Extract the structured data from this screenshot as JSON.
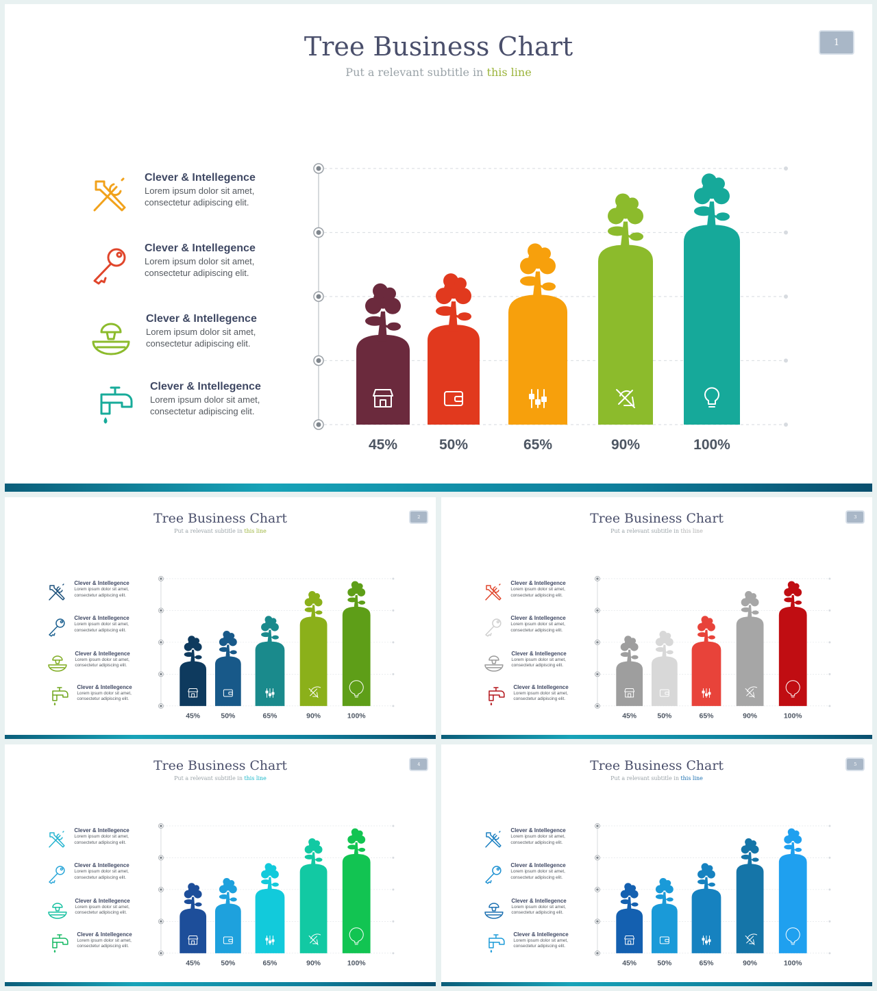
{
  "slides": [
    {
      "title": "Tree Business Chart",
      "subtitle_prefix": "Put a relevant subtitle in ",
      "subtitle_highlight": "this line",
      "highlight_color": "#9bb43b",
      "page": "1",
      "features": [
        {
          "heading": "Clever & Intellegence",
          "line1": "Lorem ipsum dolor sit amet,",
          "line2": "consectetur adipiscing elit.",
          "icon": "tools-icon",
          "color": "#f1a21c"
        },
        {
          "heading": "Clever & Intellegence",
          "line1": "Lorem ipsum dolor sit amet,",
          "line2": "consectetur adipiscing elit.",
          "icon": "key-icon",
          "color": "#e0452b"
        },
        {
          "heading": "Clever & Intellegence",
          "line1": "Lorem ipsum dolor sit amet,",
          "line2": "consectetur adipiscing elit.",
          "icon": "juicer-icon",
          "color": "#8cbb2c"
        },
        {
          "heading": "Clever & Intellegence",
          "line1": "Lorem ipsum dolor sit amet,",
          "line2": "consectetur adipiscing elit.",
          "icon": "faucet-icon",
          "color": "#17ab9a"
        }
      ],
      "chart_data": {
        "type": "bar",
        "categories": [
          "45%",
          "50%",
          "65%",
          "90%",
          "100%"
        ],
        "values": [
          45,
          50,
          65,
          90,
          100
        ],
        "bar_icons": [
          "shop-icon",
          "wallet-icon",
          "equalizer-icon",
          "bell-off-icon",
          "bulb-icon"
        ],
        "colors": [
          "#6b2a3d",
          "#e1391e",
          "#f7a00c",
          "#8cbb2c",
          "#16a99a"
        ]
      }
    },
    {
      "title": "Tree Business Chart",
      "subtitle_prefix": "Put a relevant subtitle in ",
      "subtitle_highlight": "this line",
      "highlight_color": "#9bb43b",
      "page": "2",
      "features": [
        {
          "heading": "Clever & Intellegence",
          "line1": "Lorem ipsum dolor sit amet,",
          "line2": "consectetur adipiscing elit.",
          "icon": "tools-icon",
          "color": "#1a4f7a"
        },
        {
          "heading": "Clever & Intellegence",
          "line1": "Lorem ipsum dolor sit amet,",
          "line2": "consectetur adipiscing elit.",
          "icon": "key-icon",
          "color": "#1a5f8f"
        },
        {
          "heading": "Clever & Intellegence",
          "line1": "Lorem ipsum dolor sit amet,",
          "line2": "consectetur adipiscing elit.",
          "icon": "juicer-icon",
          "color": "#7eab1f"
        },
        {
          "heading": "Clever & Intellegence",
          "line1": "Lorem ipsum dolor sit amet,",
          "line2": "consectetur adipiscing elit.",
          "icon": "faucet-icon",
          "color": "#6ea51a"
        }
      ],
      "chart_data": {
        "type": "bar",
        "categories": [
          "45%",
          "50%",
          "65%",
          "90%",
          "100%"
        ],
        "values": [
          45,
          50,
          65,
          90,
          100
        ],
        "bar_icons": [
          "shop-icon",
          "wallet-icon",
          "equalizer-icon",
          "bell-off-icon",
          "bulb-icon"
        ],
        "colors": [
          "#0e3a5e",
          "#185989",
          "#1a8a8c",
          "#8bb01a",
          "#5e9e18"
        ]
      }
    },
    {
      "title": "Tree Business Chart",
      "subtitle_prefix": "Put a relevant subtitle in ",
      "subtitle_highlight": "this line",
      "highlight_color": "#b0b0b0",
      "page": "3",
      "features": [
        {
          "heading": "Clever & Intellegence",
          "line1": "Lorem ipsum dolor sit amet,",
          "line2": "consectetur adipiscing elit.",
          "icon": "tools-icon",
          "color": "#e0452b"
        },
        {
          "heading": "Clever & Intellegence",
          "line1": "Lorem ipsum dolor sit amet,",
          "line2": "consectetur adipiscing elit.",
          "icon": "key-icon",
          "color": "#cfcfcf"
        },
        {
          "heading": "Clever & Intellegence",
          "line1": "Lorem ipsum dolor sit amet,",
          "line2": "consectetur adipiscing elit.",
          "icon": "juicer-icon",
          "color": "#9a9a9a"
        },
        {
          "heading": "Clever & Intellegence",
          "line1": "Lorem ipsum dolor sit amet,",
          "line2": "consectetur adipiscing elit.",
          "icon": "faucet-icon",
          "color": "#b3141a"
        }
      ],
      "chart_data": {
        "type": "bar",
        "categories": [
          "45%",
          "50%",
          "65%",
          "90%",
          "100%"
        ],
        "values": [
          45,
          50,
          65,
          90,
          100
        ],
        "bar_icons": [
          "shop-icon",
          "wallet-icon",
          "equalizer-icon",
          "bell-off-icon",
          "bulb-icon"
        ],
        "colors": [
          "#9e9e9e",
          "#d8d8d8",
          "#e8433a",
          "#a6a6a6",
          "#c00d12"
        ]
      }
    },
    {
      "title": "Tree Business Chart",
      "subtitle_prefix": "Put a relevant subtitle in ",
      "subtitle_highlight": "this line",
      "highlight_color": "#18b7c9",
      "page": "4",
      "features": [
        {
          "heading": "Clever & Intellegence",
          "line1": "Lorem ipsum dolor sit amet,",
          "line2": "consectetur adipiscing elit.",
          "icon": "tools-icon",
          "color": "#25b4d0"
        },
        {
          "heading": "Clever & Intellegence",
          "line1": "Lorem ipsum dolor sit amet,",
          "line2": "consectetur adipiscing elit.",
          "icon": "key-icon",
          "color": "#2aa6d8"
        },
        {
          "heading": "Clever & Intellegence",
          "line1": "Lorem ipsum dolor sit amet,",
          "line2": "consectetur adipiscing elit.",
          "icon": "juicer-icon",
          "color": "#14c0a0"
        },
        {
          "heading": "Clever & Intellegence",
          "line1": "Lorem ipsum dolor sit amet,",
          "line2": "consectetur adipiscing elit.",
          "icon": "faucet-icon",
          "color": "#12b862"
        }
      ],
      "chart_data": {
        "type": "bar",
        "categories": [
          "45%",
          "50%",
          "65%",
          "90%",
          "100%"
        ],
        "values": [
          45,
          50,
          65,
          90,
          100
        ],
        "bar_icons": [
          "shop-icon",
          "wallet-icon",
          "equalizer-icon",
          "bell-off-icon",
          "bulb-icon"
        ],
        "colors": [
          "#1d4e9a",
          "#1ea1dd",
          "#12cadb",
          "#12c9a3",
          "#12c452"
        ]
      }
    },
    {
      "title": "Tree Business Chart",
      "subtitle_prefix": "Put a relevant subtitle in ",
      "subtitle_highlight": "this line",
      "highlight_color": "#1a6fb0",
      "page": "5",
      "features": [
        {
          "heading": "Clever & Intellegence",
          "line1": "Lorem ipsum dolor sit amet,",
          "line2": "consectetur adipiscing elit.",
          "icon": "tools-icon",
          "color": "#1a7fc1"
        },
        {
          "heading": "Clever & Intellegence",
          "line1": "Lorem ipsum dolor sit amet,",
          "line2": "consectetur adipiscing elit.",
          "icon": "key-icon",
          "color": "#1a8fd1"
        },
        {
          "heading": "Clever & Intellegence",
          "line1": "Lorem ipsum dolor sit amet,",
          "line2": "consectetur adipiscing elit.",
          "icon": "juicer-icon",
          "color": "#1a6fb0"
        },
        {
          "heading": "Clever & Intellegence",
          "line1": "Lorem ipsum dolor sit amet,",
          "line2": "consectetur adipiscing elit.",
          "icon": "faucet-icon",
          "color": "#1a9ad8"
        }
      ],
      "chart_data": {
        "type": "bar",
        "categories": [
          "45%",
          "50%",
          "65%",
          "90%",
          "100%"
        ],
        "values": [
          45,
          50,
          65,
          90,
          100
        ],
        "bar_icons": [
          "shop-icon",
          "wallet-icon",
          "equalizer-icon",
          "bell-off-icon",
          "bulb-icon"
        ],
        "colors": [
          "#1460b0",
          "#1a9ad8",
          "#1682c0",
          "#1575a8",
          "#1fa0ef"
        ]
      }
    }
  ]
}
